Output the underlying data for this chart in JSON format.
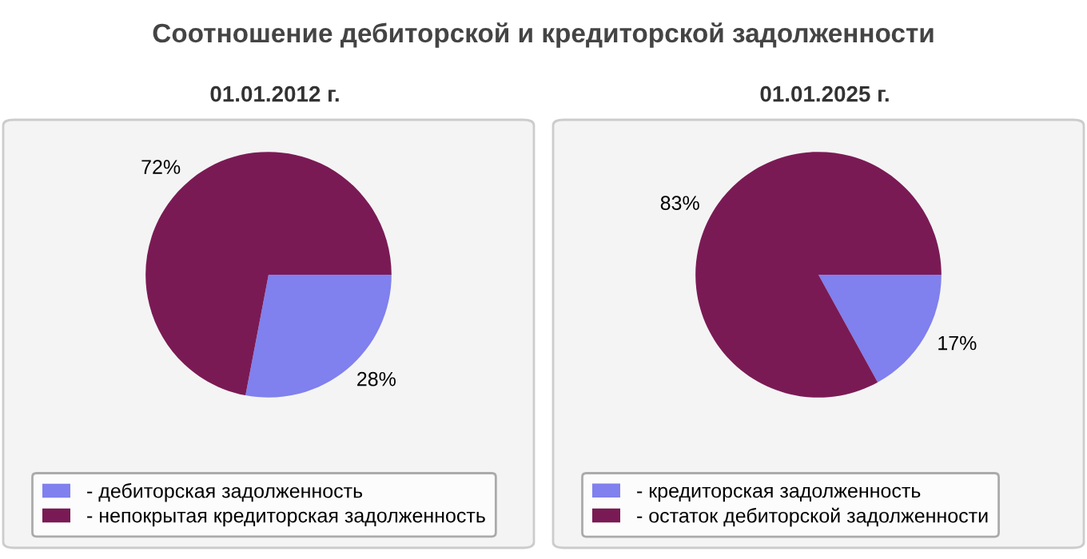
{
  "chart_data": [
    {
      "type": "pie",
      "title": "Соотношение дебиторской и кредиторской задолженности",
      "subtitle": "01.01.2012 г.",
      "categories": [
        "- дебиторская задолженность",
        "- непокрытая кредиторская задолженность"
      ],
      "values": [
        28,
        72
      ],
      "value_labels": [
        "28%",
        "72%"
      ],
      "colors": [
        "#8080ee",
        "#7a1a55"
      ],
      "legend": "bottom"
    },
    {
      "type": "pie",
      "subtitle": "01.01.2025 г.",
      "categories": [
        "- кредиторская задолженность",
        "- остаток дебиторской задолженности"
      ],
      "values": [
        17,
        83
      ],
      "value_labels": [
        "17%",
        "83%"
      ],
      "colors": [
        "#8080ee",
        "#7a1a55"
      ],
      "legend": "bottom"
    }
  ]
}
